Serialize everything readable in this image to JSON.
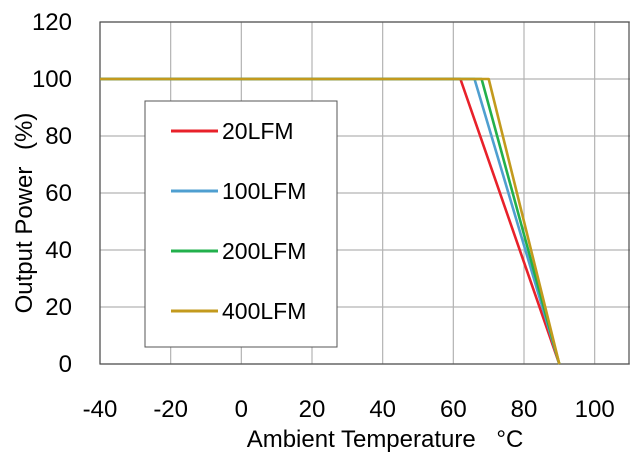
{
  "chart_data": {
    "type": "line",
    "title": "",
    "xlabel": "Ambient Temperature",
    "xlabel_unit": "°C",
    "ylabel": "Output Power",
    "ylabel_unit": "(%)",
    "xlim": [
      -40,
      110
    ],
    "ylim": [
      0,
      120
    ],
    "x_ticks": [
      -40,
      -20,
      0,
      20,
      40,
      60,
      80,
      100
    ],
    "y_ticks": [
      0,
      20,
      40,
      60,
      80,
      100,
      120
    ],
    "x_tick_labels": [
      "-40",
      "-20",
      "0",
      "20",
      "40",
      "60",
      "80",
      "100"
    ],
    "y_tick_labels": [
      "0",
      "20",
      "40",
      "60",
      "80",
      "100",
      "120"
    ],
    "grid": true,
    "legend": "left-center",
    "series": [
      {
        "name": "20LFM",
        "color": "#e8212a",
        "x": [
          -40,
          62,
          90
        ],
        "y": [
          100,
          100,
          0
        ]
      },
      {
        "name": "100LFM",
        "color": "#4f9fd0",
        "x": [
          -40,
          66,
          90
        ],
        "y": [
          100,
          100,
          0
        ]
      },
      {
        "name": "200LFM",
        "color": "#22b04c",
        "x": [
          -40,
          68,
          90
        ],
        "y": [
          100,
          100,
          0
        ]
      },
      {
        "name": "400LFM",
        "color": "#c39a1d",
        "x": [
          -40,
          70,
          90
        ],
        "y": [
          100,
          100,
          0
        ]
      }
    ]
  }
}
